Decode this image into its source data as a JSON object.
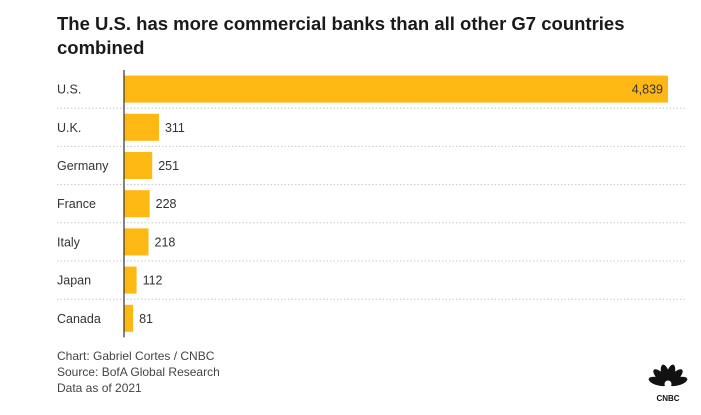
{
  "title": "The U.S. has more commercial banks than all other G7 countries combined",
  "chart_data": {
    "type": "bar",
    "orientation": "horizontal",
    "title": "The U.S. has more commercial banks than all other G7 countries combined",
    "categories": [
      "U.S.",
      "U.K.",
      "Germany",
      "France",
      "Italy",
      "Japan",
      "Canada"
    ],
    "values": [
      4839,
      311,
      251,
      228,
      218,
      112,
      81
    ],
    "value_labels": [
      "4,839",
      "311",
      "251",
      "228",
      "218",
      "112",
      "81"
    ],
    "xlabel": "",
    "ylabel": "",
    "xlim": [
      0,
      4839
    ],
    "bar_color": "#FDB813",
    "grid": "dotted row separators"
  },
  "footer": {
    "credit": "Chart: Gabriel Cortes / CNBC",
    "source": "Source: BofA Global Research",
    "date_note": "Data as of 2021"
  },
  "logo": {
    "icon": "cnbc-peacock-icon",
    "text": "CNBC"
  }
}
